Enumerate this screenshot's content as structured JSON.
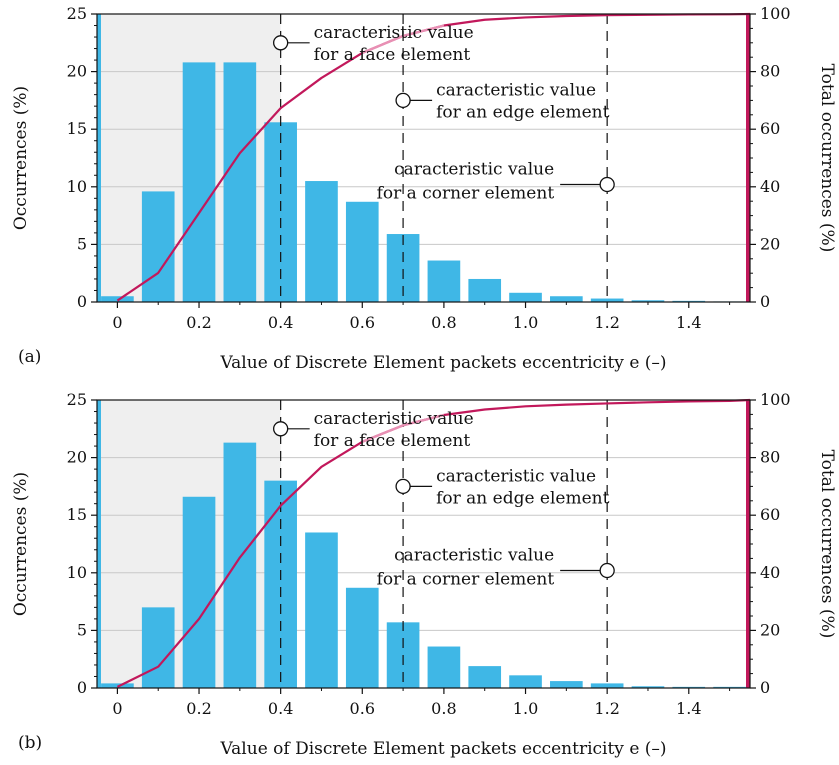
{
  "colors": {
    "bar": "#3fb7e6",
    "cumulative_line": "#c2185b",
    "cumulative_line_light": "#e890b4",
    "shade": "#efefef",
    "grid": "#c8c8c8",
    "axis": "#111111"
  },
  "chart_data": [
    {
      "type": "bar",
      "panel_label": "(a)",
      "xlabel": "Value of Discrete Element packets eccentricity e (–)",
      "ylabel": "Occurrences (%)",
      "y2label": "Total occurrences (%)",
      "xlim": [
        -0.05,
        1.55
      ],
      "ylim": [
        0,
        25
      ],
      "y2lim": [
        0,
        100
      ],
      "xticks": [
        "0",
        "0.2",
        "0.4",
        "0.6",
        "0.8",
        "1.0",
        "1.2",
        "1.4"
      ],
      "yticks": [
        "0",
        "5",
        "10",
        "15",
        "20",
        "25"
      ],
      "y2ticks": [
        "0",
        "20",
        "40",
        "60",
        "80",
        "100"
      ],
      "x": [
        0,
        0.1,
        0.2,
        0.3,
        0.4,
        0.5,
        0.6,
        0.7,
        0.8,
        0.9,
        1.0,
        1.1,
        1.2,
        1.3,
        1.4,
        1.5
      ],
      "values": [
        0.5,
        9.6,
        20.8,
        20.8,
        15.6,
        10.5,
        8.7,
        5.9,
        3.6,
        2.0,
        0.8,
        0.5,
        0.3,
        0.15,
        0.1,
        0.05
      ],
      "cumulative": [
        0.5,
        10.1,
        30.9,
        51.7,
        67.3,
        77.8,
        86.5,
        92.4,
        96.0,
        98.0,
        98.8,
        99.3,
        99.6,
        99.75,
        99.85,
        99.9,
        100.0
      ],
      "cumulative_x": [
        0,
        0.1,
        0.2,
        0.3,
        0.4,
        0.5,
        0.6,
        0.7,
        0.8,
        0.9,
        1.0,
        1.1,
        1.2,
        1.3,
        1.4,
        1.5,
        1.55
      ],
      "shaded_region": [
        -0.05,
        0.4
      ],
      "reference_lines": [
        0.4,
        0.7,
        1.2
      ],
      "annotations": [
        {
          "lines": [
            "caracteristic value",
            "for a face element"
          ],
          "x": 0.4,
          "y": 22.5
        },
        {
          "lines": [
            "caracteristic value",
            "for an edge element"
          ],
          "x": 0.7,
          "y": 17.5
        },
        {
          "lines": [
            "caracteristic value",
            "for a corner element"
          ],
          "x": 1.2,
          "y": 10.2
        }
      ],
      "grid": "horizontal"
    },
    {
      "type": "bar",
      "panel_label": "(b)",
      "xlabel": "Value of Discrete Element packets eccentricity e (–)",
      "ylabel": "Occurrences (%)",
      "y2label": "Total occurrences (%)",
      "xlim": [
        -0.05,
        1.55
      ],
      "ylim": [
        0,
        25
      ],
      "y2lim": [
        0,
        100
      ],
      "xticks": [
        "0",
        "0.2",
        "0.4",
        "0.6",
        "0.8",
        "1.0",
        "1.2",
        "1.4"
      ],
      "yticks": [
        "0",
        "5",
        "10",
        "15",
        "20",
        "25"
      ],
      "y2ticks": [
        "0",
        "20",
        "40",
        "60",
        "80",
        "100"
      ],
      "x": [
        0,
        0.1,
        0.2,
        0.3,
        0.4,
        0.5,
        0.6,
        0.7,
        0.8,
        0.9,
        1.0,
        1.1,
        1.2,
        1.3,
        1.4,
        1.5
      ],
      "values": [
        0.4,
        7.0,
        16.6,
        21.3,
        18.0,
        13.5,
        8.7,
        5.7,
        3.6,
        1.9,
        1.1,
        0.6,
        0.4,
        0.15,
        0.1,
        0.1
      ],
      "cumulative": [
        0.4,
        7.4,
        24.0,
        45.3,
        63.3,
        76.8,
        85.5,
        91.2,
        94.8,
        96.7,
        97.8,
        98.4,
        98.8,
        99.2,
        99.5,
        99.7,
        100.0
      ],
      "cumulative_x": [
        0,
        0.1,
        0.2,
        0.3,
        0.4,
        0.5,
        0.6,
        0.7,
        0.8,
        0.9,
        1.0,
        1.1,
        1.2,
        1.3,
        1.4,
        1.5,
        1.55
      ],
      "shaded_region": [
        -0.05,
        0.4
      ],
      "reference_lines": [
        0.4,
        0.7,
        1.2
      ],
      "annotations": [
        {
          "lines": [
            "caracteristic value",
            "for a face element"
          ],
          "x": 0.4,
          "y": 22.5
        },
        {
          "lines": [
            "caracteristic value",
            "for an edge element"
          ],
          "x": 0.7,
          "y": 17.5
        },
        {
          "lines": [
            "caracteristic value",
            "for a corner element"
          ],
          "x": 1.2,
          "y": 10.2
        }
      ],
      "grid": "horizontal"
    }
  ]
}
